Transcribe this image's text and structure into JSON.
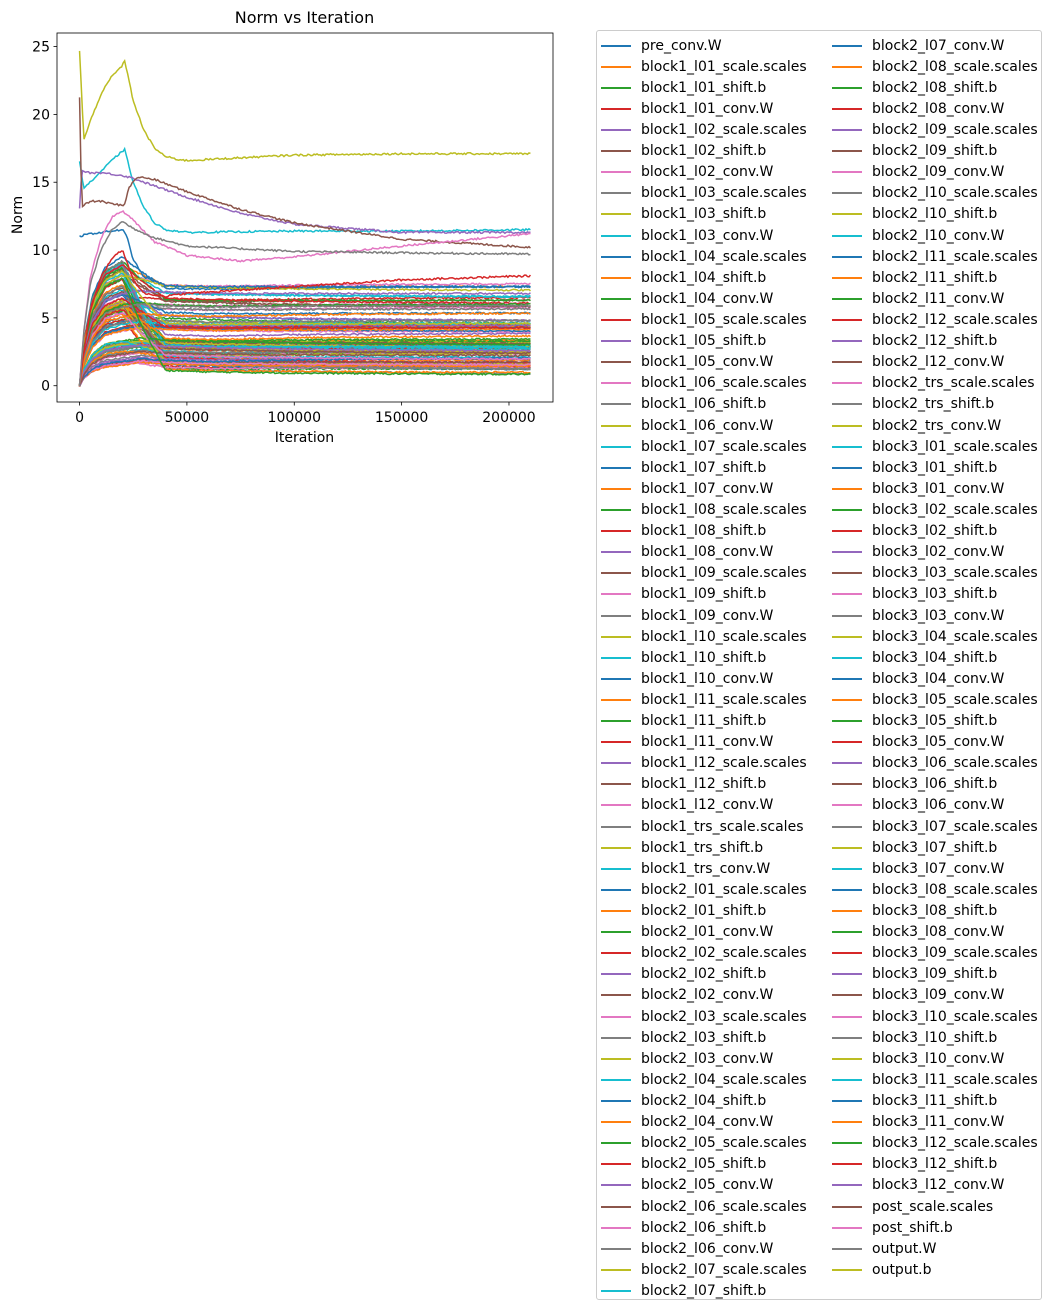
{
  "chart_data": {
    "type": "line",
    "title": "Norm vs Iteration",
    "xlabel": "Iteration",
    "ylabel": "Norm",
    "xlim": [
      -10500,
      220500
    ],
    "ylim": [
      -1.2,
      26
    ],
    "xticks": [
      0,
      50000,
      100000,
      150000,
      200000
    ],
    "xtick_labels": [
      "0",
      "50000",
      "100000",
      "150000",
      "200000"
    ],
    "yticks": [
      0,
      5,
      10,
      15,
      20,
      25
    ],
    "ytick_labels": [
      "0",
      "5",
      "10",
      "15",
      "20",
      "25"
    ],
    "grid": false,
    "legend_placement": "outside-right",
    "color_cycle": [
      "#1f77b4",
      "#ff7f0e",
      "#2ca02c",
      "#d62728",
      "#9467bd",
      "#8c564b",
      "#e377c2",
      "#7f7f7f",
      "#bcbd22",
      "#17becf"
    ],
    "series_names": [
      "pre_conv.W",
      "block1_l01_scale.scales",
      "block1_l01_shift.b",
      "block1_l01_conv.W",
      "block1_l02_scale.scales",
      "block1_l02_shift.b",
      "block1_l02_conv.W",
      "block1_l03_scale.scales",
      "block1_l03_shift.b",
      "block1_l03_conv.W",
      "block1_l04_scale.scales",
      "block1_l04_shift.b",
      "block1_l04_conv.W",
      "block1_l05_scale.scales",
      "block1_l05_shift.b",
      "block1_l05_conv.W",
      "block1_l06_scale.scales",
      "block1_l06_shift.b",
      "block1_l06_conv.W",
      "block1_l07_scale.scales",
      "block1_l07_shift.b",
      "block1_l07_conv.W",
      "block1_l08_scale.scales",
      "block1_l08_shift.b",
      "block1_l08_conv.W",
      "block1_l09_scale.scales",
      "block1_l09_shift.b",
      "block1_l09_conv.W",
      "block1_l10_scale.scales",
      "block1_l10_shift.b",
      "block1_l10_conv.W",
      "block1_l11_scale.scales",
      "block1_l11_shift.b",
      "block1_l11_conv.W",
      "block1_l12_scale.scales",
      "block1_l12_shift.b",
      "block1_l12_conv.W",
      "block1_trs_scale.scales",
      "block1_trs_shift.b",
      "block1_trs_conv.W",
      "block2_l01_scale.scales",
      "block2_l01_shift.b",
      "block2_l01_conv.W",
      "block2_l02_scale.scales",
      "block2_l02_shift.b",
      "block2_l02_conv.W",
      "block2_l03_scale.scales",
      "block2_l03_shift.b",
      "block2_l03_conv.W",
      "block2_l04_scale.scales",
      "block2_l04_shift.b",
      "block2_l04_conv.W",
      "block2_l05_scale.scales",
      "block2_l05_shift.b",
      "block2_l05_conv.W",
      "block2_l06_scale.scales",
      "block2_l06_shift.b",
      "block2_l06_conv.W",
      "block2_l07_scale.scales",
      "block2_l07_shift.b",
      "block2_l07_conv.W",
      "block2_l08_scale.scales",
      "block2_l08_shift.b",
      "block2_l08_conv.W",
      "block2_l09_scale.scales",
      "block2_l09_shift.b",
      "block2_l09_conv.W",
      "block2_l10_scale.scales",
      "block2_l10_shift.b",
      "block2_l10_conv.W",
      "block2_l11_scale.scales",
      "block2_l11_shift.b",
      "block2_l11_conv.W",
      "block2_l12_scale.scales",
      "block2_l12_shift.b",
      "block2_l12_conv.W",
      "block2_trs_scale.scales",
      "block2_trs_shift.b",
      "block2_trs_conv.W",
      "block3_l01_scale.scales",
      "block3_l01_shift.b",
      "block3_l01_conv.W",
      "block3_l02_scale.scales",
      "block3_l02_shift.b",
      "block3_l02_conv.W",
      "block3_l03_scale.scales",
      "block3_l03_shift.b",
      "block3_l03_conv.W",
      "block3_l04_scale.scales",
      "block3_l04_shift.b",
      "block3_l04_conv.W",
      "block3_l05_scale.scales",
      "block3_l05_shift.b",
      "block3_l05_conv.W",
      "block3_l06_scale.scales",
      "block3_l06_shift.b",
      "block3_l06_conv.W",
      "block3_l07_scale.scales",
      "block3_l07_shift.b",
      "block3_l07_conv.W",
      "block3_l08_scale.scales",
      "block3_l08_shift.b",
      "block3_l08_conv.W",
      "block3_l09_scale.scales",
      "block3_l09_shift.b",
      "block3_l09_conv.W",
      "block3_l10_scale.scales",
      "block3_l10_shift.b",
      "block3_l10_conv.W",
      "block3_l11_scale.scales",
      "block3_l11_shift.b",
      "block3_l11_conv.W",
      "block3_l12_scale.scales",
      "block3_l12_shift.b",
      "block3_l12_conv.W",
      "post_scale.scales",
      "post_shift.b",
      "output.W",
      "output.b"
    ],
    "highlighted_series": [
      {
        "name": "output.b",
        "x": [
          0,
          2000,
          5000,
          10000,
          15000,
          20000,
          21000,
          25000,
          30000,
          35000,
          40000,
          45000,
          50000,
          75000,
          100000,
          150000,
          210000
        ],
        "y": [
          24.7,
          18.1,
          19.5,
          21.5,
          22.8,
          23.6,
          24.0,
          21.0,
          18.8,
          17.5,
          16.9,
          16.7,
          16.6,
          16.8,
          17.0,
          17.1,
          17.1
        ]
      },
      {
        "name": "block3_l11_scale.scales",
        "x": [
          0,
          2000,
          5000,
          10000,
          15000,
          20000,
          21000,
          25000,
          30000,
          35000,
          40000,
          50000,
          100000,
          150000,
          210000
        ],
        "y": [
          16.5,
          14.6,
          15.0,
          15.8,
          16.6,
          17.3,
          17.4,
          15.0,
          13.1,
          12.0,
          11.5,
          11.3,
          11.4,
          11.4,
          11.5
        ]
      },
      {
        "name": "block3_l12_conv.W",
        "x": [
          0,
          1000,
          2000,
          5000,
          10000,
          15000,
          20000,
          25000,
          30000,
          50000,
          75000,
          100000,
          150000,
          210000
        ],
        "y": [
          13.0,
          15.9,
          15.8,
          15.7,
          15.7,
          15.6,
          15.5,
          15.3,
          15.0,
          13.9,
          12.7,
          11.9,
          11.3,
          11.3
        ]
      },
      {
        "name": "post_scale.scales",
        "x": [
          0,
          1000,
          2000,
          5000,
          10000,
          15000,
          20000,
          21000,
          23000,
          27000,
          35000,
          50000,
          75000,
          100000,
          150000,
          210000
        ],
        "y": [
          21.2,
          13.2,
          13.3,
          13.6,
          13.6,
          13.4,
          13.3,
          13.4,
          14.6,
          15.4,
          15.2,
          14.3,
          13.0,
          12.0,
          10.8,
          10.2
        ]
      },
      {
        "name": "post_shift.b",
        "x": [
          0,
          2000,
          5000,
          10000,
          15000,
          20000,
          25000,
          35000,
          50000,
          75000,
          100000,
          150000,
          210000
        ],
        "y": [
          0.0,
          4.0,
          8.0,
          10.9,
          12.4,
          12.9,
          12.2,
          10.6,
          9.6,
          9.2,
          9.5,
          10.3,
          11.2
        ]
      },
      {
        "name": "output.W",
        "x": [
          0,
          2000,
          5000,
          10000,
          15000,
          20000,
          25000,
          35000,
          50000,
          100000,
          150000,
          210000
        ],
        "y": [
          0.0,
          4.0,
          7.5,
          10.0,
          11.5,
          12.1,
          11.6,
          10.9,
          10.3,
          9.9,
          9.8,
          9.7
        ]
      },
      {
        "name": "block3_l11_shift.b",
        "x": [
          0,
          2000,
          5000,
          10000,
          15000,
          20000,
          22000,
          25000,
          30000,
          40000,
          50000,
          100000,
          150000,
          210000
        ],
        "y": [
          11.0,
          11.1,
          11.2,
          11.3,
          11.4,
          11.5,
          11.0,
          9.3,
          8.0,
          7.4,
          7.3,
          7.3,
          7.3,
          7.3
        ]
      },
      {
        "name": "block3_l12_shift.b",
        "x": [
          0,
          2000,
          5000,
          10000,
          15000,
          20000,
          22000,
          25000,
          30000,
          40000,
          50000,
          100000,
          150000,
          210000
        ],
        "y": [
          0.0,
          2.5,
          5.5,
          8.0,
          9.4,
          10.0,
          9.2,
          7.8,
          6.8,
          6.6,
          6.8,
          7.3,
          7.8,
          8.1
        ]
      }
    ],
    "bundle_summary": {
      "description_values": "remaining series rise from ~0 at iteration 0 to a peak near iteration 20000, then settle to plateau values",
      "peak_range": [
        1.5,
        9.5
      ],
      "plateau_range": [
        1.0,
        7.5
      ]
    }
  }
}
